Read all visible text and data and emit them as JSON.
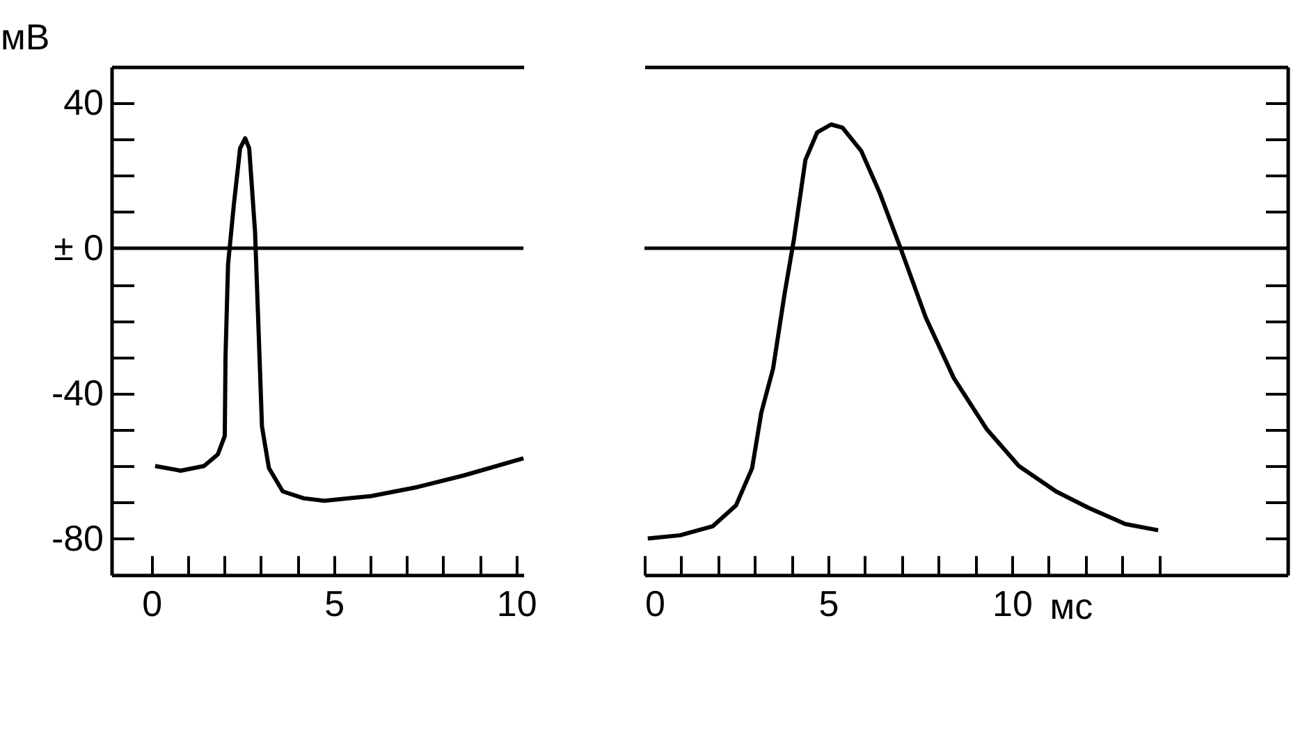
{
  "chart_data": [
    {
      "type": "line",
      "ylabel": "мВ",
      "xlim": [
        -1.1,
        10.2
      ],
      "ylim": [
        -90,
        50
      ],
      "xticks": [
        0,
        {
          "value": 1,
          "label": null
        },
        {
          "value": 2,
          "label": null
        },
        {
          "value": 3,
          "label": null
        },
        {
          "value": 4,
          "label": null
        },
        5,
        {
          "value": 6,
          "label": null
        },
        {
          "value": 7,
          "label": null
        },
        {
          "value": 8,
          "label": null
        },
        {
          "value": 9,
          "label": null
        },
        10
      ],
      "yticks": [
        40,
        {
          "value": 30,
          "label": null
        },
        {
          "value": 20,
          "label": null
        },
        {
          "value": 10,
          "label": null
        },
        {
          "value": 0,
          "label": "± 0"
        },
        {
          "value": -10,
          "label": null
        },
        {
          "value": -20,
          "label": null
        },
        {
          "value": -30,
          "label": null
        },
        -40,
        {
          "value": -50,
          "label": null
        },
        {
          "value": -60,
          "label": null
        },
        {
          "value": -70,
          "label": null
        },
        -80
      ],
      "ref_lines": [
        {
          "axis": "y",
          "value": 0,
          "color": "#000000"
        }
      ],
      "series": [
        {
          "color": "#000000",
          "x": [
            0.1,
            0.8,
            1.44,
            1.82,
            2.01,
            2.03,
            2.1,
            2.26,
            2.43,
            2.57,
            2.68,
            2.84,
            2.94,
            3.03,
            3.22,
            3.6,
            4.17,
            4.74,
            6.02,
            7.3,
            8.57,
            10.2
          ],
          "values": [
            -60,
            -61.3,
            -60,
            -56.8,
            -51.7,
            -30,
            -4.4,
            12.1,
            27.5,
            30.3,
            27.5,
            4.5,
            -23.5,
            -49.1,
            -60.6,
            -67,
            -68.9,
            -69.6,
            -68.3,
            -65.8,
            -62.6,
            -57.9
          ]
        }
      ]
    },
    {
      "type": "line",
      "xlabel": "мс",
      "xlim": [
        0,
        17.5
      ],
      "ylim": [
        -90,
        50
      ],
      "tick_labels": "x",
      "xticks": [
        0,
        {
          "value": 1,
          "label": null
        },
        {
          "value": 2,
          "label": null
        },
        {
          "value": 3,
          "label": null
        },
        {
          "value": 4,
          "label": null
        },
        5,
        {
          "value": 6,
          "label": null
        },
        {
          "value": 7,
          "label": null
        },
        {
          "value": 8,
          "label": null
        },
        {
          "value": 9,
          "label": null
        },
        10,
        {
          "value": 11,
          "label": null
        },
        {
          "value": 12,
          "label": null
        },
        {
          "value": 13,
          "label": null
        },
        {
          "value": 14,
          "label": null
        }
      ],
      "yticks": [
        {
          "value": 40,
          "label": null
        },
        {
          "value": 30,
          "label": null
        },
        {
          "value": 20,
          "label": null
        },
        {
          "value": 10,
          "label": null
        },
        {
          "value": -10,
          "label": null
        },
        {
          "value": -20,
          "label": null
        },
        {
          "value": -30,
          "label": null
        },
        {
          "value": -40,
          "label": null
        },
        {
          "value": -50,
          "label": null
        },
        {
          "value": -60,
          "label": null
        },
        {
          "value": -70,
          "label": null
        },
        {
          "value": -80,
          "label": null
        }
      ],
      "ref_lines": [
        {
          "axis": "y",
          "value": 0,
          "color": "#000000"
        }
      ],
      "series": [
        {
          "color": "#000000",
          "x": [
            0.09,
            0.97,
            1.86,
            2.49,
            2.93,
            3.18,
            3.5,
            3.81,
            4.07,
            4.38,
            4.7,
            5.08,
            5.39,
            5.9,
            6.4,
            6.97,
            7.66,
            8.42,
            9.31,
            10.19,
            11.2,
            12.08,
            13.09,
            13.98
          ],
          "values": [
            -80,
            -79.1,
            -76.6,
            -70.9,
            -60.6,
            -45.3,
            -33.2,
            -12.8,
            2.6,
            24.3,
            31.9,
            34.1,
            33.2,
            26.8,
            15.3,
            0,
            -19.2,
            -35.8,
            -49.8,
            -60,
            -67,
            -71.5,
            -76,
            -77.7
          ]
        }
      ]
    }
  ]
}
